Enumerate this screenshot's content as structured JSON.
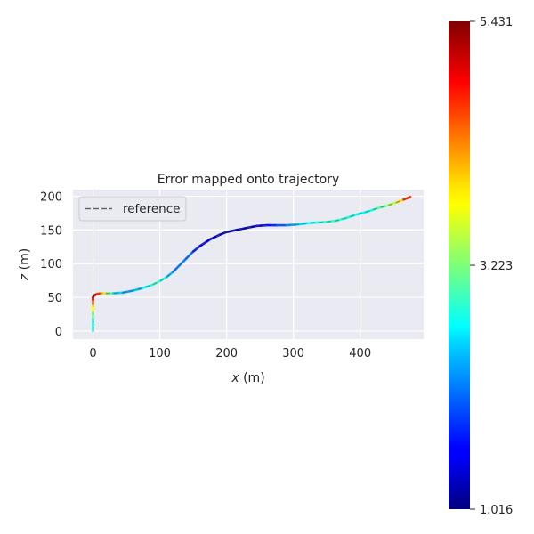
{
  "chart_data": {
    "type": "line",
    "title": "Error mapped onto trajectory",
    "xlabel_var": "x",
    "xlabel_unit": " (m)",
    "ylabel_var": "z",
    "ylabel_unit": " (m)",
    "xlim": [
      -30,
      495
    ],
    "ylim": [
      -12,
      210
    ],
    "xticks": [
      0,
      100,
      200,
      300,
      400
    ],
    "yticks": [
      0,
      50,
      100,
      150,
      200
    ],
    "grid": true,
    "legend": {
      "placement": "top-left",
      "entries": [
        {
          "label": "reference",
          "style": "dashed",
          "color": "#666666"
        }
      ]
    },
    "colorbar": {
      "min": 1.016,
      "max": 5.431,
      "ticks": [
        "1.016",
        "3.223",
        "5.431"
      ],
      "colormap": "jet"
    },
    "series": [
      {
        "x": [
          0,
          0,
          0,
          0,
          0,
          0,
          0,
          2,
          6,
          12,
          20,
          30,
          45,
          60,
          75,
          90,
          100,
          110,
          120,
          130,
          140,
          150,
          160,
          175,
          190,
          200,
          215,
          230,
          245,
          260,
          275,
          290,
          305,
          320,
          335,
          350,
          365,
          380,
          395,
          410,
          425,
          440,
          455,
          465,
          475
        ],
        "z": [
          0,
          10,
          20,
          30,
          40,
          47,
          50,
          53,
          55,
          56,
          56,
          56,
          57,
          60,
          64,
          69,
          74,
          80,
          88,
          98,
          108,
          118,
          126,
          136,
          143,
          147,
          150,
          153,
          156,
          157,
          157,
          157,
          158,
          160,
          161,
          162,
          164,
          168,
          173,
          177,
          182,
          186,
          191,
          195,
          199
        ],
        "error": [
          3.0,
          2.6,
          2.9,
          3.4,
          4.1,
          4.8,
          5.2,
          5.3,
          5.0,
          4.3,
          3.6,
          2.8,
          2.2,
          2.3,
          2.5,
          2.9,
          3.0,
          2.6,
          2.2,
          2.0,
          2.3,
          1.8,
          1.6,
          1.4,
          1.3,
          1.2,
          1.2,
          1.25,
          1.3,
          1.5,
          1.8,
          2.1,
          2.4,
          2.6,
          2.8,
          2.9,
          2.9,
          2.8,
          2.7,
          2.6,
          2.9,
          3.2,
          3.6,
          4.2,
          5.2
        ]
      }
    ]
  }
}
